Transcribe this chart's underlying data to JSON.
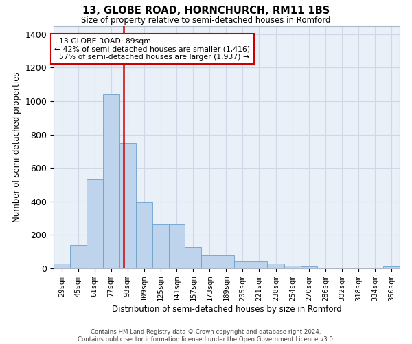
{
  "title": "13, GLOBE ROAD, HORNCHURCH, RM11 1BS",
  "subtitle": "Size of property relative to semi-detached houses in Romford",
  "xlabel": "Distribution of semi-detached houses by size in Romford",
  "ylabel": "Number of semi-detached properties",
  "footer_line1": "Contains HM Land Registry data © Crown copyright and database right 2024.",
  "footer_line2": "Contains public sector information licensed under the Open Government Licence v3.0.",
  "property_size": 89,
  "property_label": "13 GLOBE ROAD: 89sqm",
  "pct_smaller": 42,
  "count_smaller": 1416,
  "pct_larger": 57,
  "count_larger": 1937,
  "bar_color": "#bdd4ec",
  "bar_edge_color": "#6da0cc",
  "vline_color": "#cc0000",
  "annotation_box_color": "#cc0000",
  "grid_color": "#d0d8e8",
  "bg_color": "#eaf0f8",
  "categories": [
    "29sqm",
    "45sqm",
    "61sqm",
    "77sqm",
    "93sqm",
    "109sqm",
    "125sqm",
    "141sqm",
    "157sqm",
    "173sqm",
    "189sqm",
    "205sqm",
    "221sqm",
    "238sqm",
    "254sqm",
    "270sqm",
    "286sqm",
    "302sqm",
    "318sqm",
    "334sqm",
    "350sqm"
  ],
  "bin_edges": [
    21,
    37,
    53,
    69,
    85,
    101,
    117,
    133,
    149,
    165,
    181,
    197,
    213,
    229,
    246,
    262,
    278,
    294,
    310,
    326,
    342,
    358
  ],
  "values": [
    28,
    140,
    535,
    1040,
    748,
    393,
    265,
    265,
    128,
    80,
    80,
    40,
    40,
    28,
    18,
    12,
    0,
    0,
    0,
    0,
    12
  ],
  "ylim": [
    0,
    1450
  ],
  "yticks": [
    0,
    200,
    400,
    600,
    800,
    1000,
    1200,
    1400
  ]
}
